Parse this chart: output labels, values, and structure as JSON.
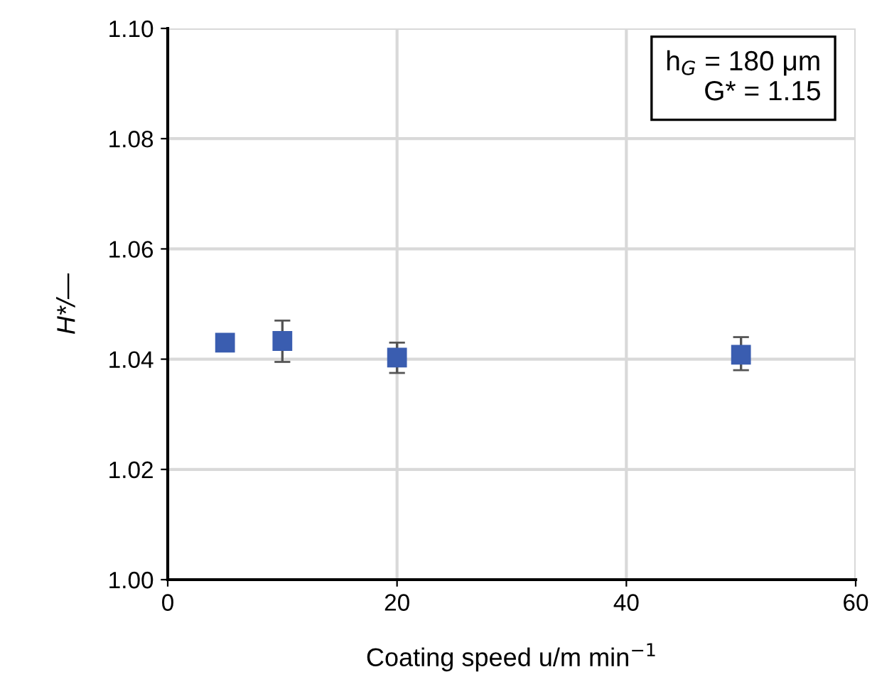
{
  "chart_data": {
    "type": "scatter",
    "xlabel": "Coating speed u/m min$^{−1}$",
    "ylabel": "H*/—",
    "x": [
      5,
      10,
      20,
      50
    ],
    "series": [
      {
        "color": "#3a5db0",
        "values": [
          1.043,
          1.0433,
          1.0403,
          1.0408
        ],
        "errors": [
          null,
          [
            1.0395,
            1.047
          ],
          [
            1.0375,
            1.043
          ],
          [
            1.038,
            1.044
          ]
        ]
      }
    ],
    "xlim": [
      0,
      60
    ],
    "ylim": [
      1.0,
      1.1
    ],
    "xticks": [
      0,
      20,
      40,
      60
    ],
    "yticks": [
      {
        "value": 1.0,
        "label": "1.00"
      },
      {
        "value": 1.02,
        "label": "1.02"
      },
      {
        "value": 1.04,
        "label": "1.04"
      },
      {
        "value": 1.06,
        "label": "1.06"
      },
      {
        "value": 1.08,
        "label": "1.08"
      },
      {
        "value": 1.1,
        "label": "1.10"
      }
    ],
    "grid": true,
    "marker": "square",
    "annotations": [
      "h$_{G}$ = 180 μm\nG* = 1.15"
    ]
  }
}
